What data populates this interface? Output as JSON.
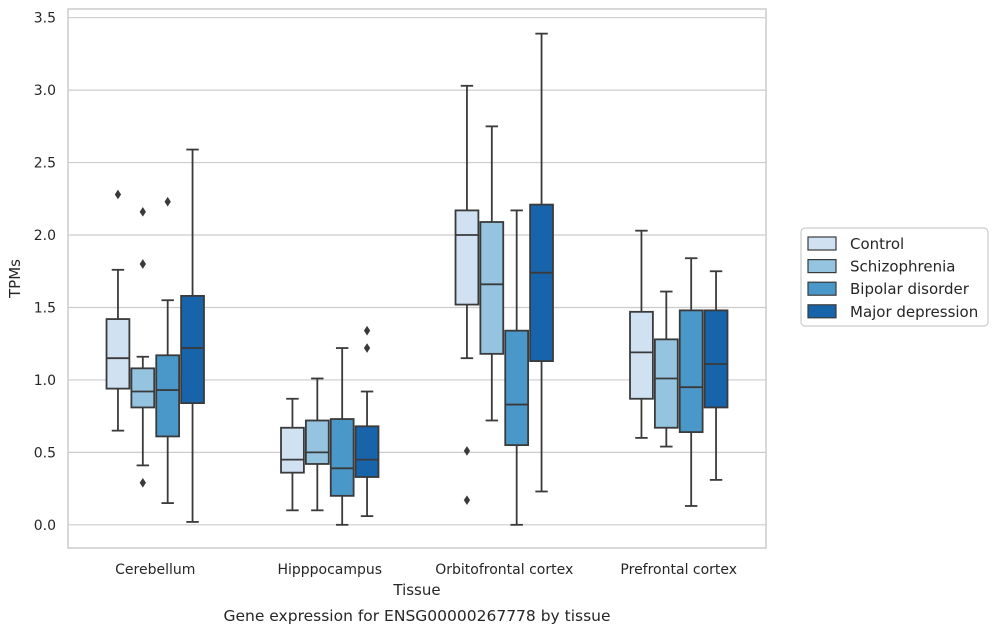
{
  "caption": "Gene expression for ENSG00000267778 by tissue",
  "chart_data": {
    "type": "boxplot",
    "title": "",
    "xlabel": "Tissue",
    "ylabel": "TPMs",
    "ylim": [
      -0.16,
      3.56
    ],
    "yticks": [
      "0.0",
      "0.5",
      "1.0",
      "1.5",
      "2.0",
      "2.5",
      "3.0",
      "3.5"
    ],
    "ytick_values": [
      0,
      0.5,
      1.0,
      1.5,
      2.0,
      2.5,
      3.0,
      3.5
    ],
    "grid": "horizontal",
    "legend_position": "right",
    "categories": [
      "Cerebellum",
      "Hipppocampus",
      "Orbitofrontal cortex",
      "Prefrontal cortex"
    ],
    "series": [
      {
        "name": "Control",
        "color": "#d0e1f2",
        "boxes": [
          {
            "whisker_low": 0.65,
            "q1": 0.94,
            "median": 1.15,
            "q3": 1.42,
            "whisker_high": 1.76,
            "outliers": [
              2.28
            ]
          },
          {
            "whisker_low": 0.1,
            "q1": 0.36,
            "median": 0.45,
            "q3": 0.67,
            "whisker_high": 0.87,
            "outliers": []
          },
          {
            "whisker_low": 1.15,
            "q1": 1.52,
            "median": 2.0,
            "q3": 2.17,
            "whisker_high": 3.03,
            "outliers": [
              0.51,
              0.17
            ]
          },
          {
            "whisker_low": 0.6,
            "q1": 0.87,
            "median": 1.19,
            "q3": 1.47,
            "whisker_high": 2.03,
            "outliers": []
          }
        ]
      },
      {
        "name": "Schizophrenia",
        "color": "#94c4df",
        "boxes": [
          {
            "whisker_low": 0.41,
            "q1": 0.81,
            "median": 0.92,
            "q3": 1.08,
            "whisker_high": 1.16,
            "outliers": [
              2.16,
              1.8,
              0.29
            ]
          },
          {
            "whisker_low": 0.1,
            "q1": 0.42,
            "median": 0.5,
            "q3": 0.72,
            "whisker_high": 1.01,
            "outliers": []
          },
          {
            "whisker_low": 0.72,
            "q1": 1.18,
            "median": 1.66,
            "q3": 2.09,
            "whisker_high": 2.75,
            "outliers": []
          },
          {
            "whisker_low": 0.54,
            "q1": 0.67,
            "median": 1.01,
            "q3": 1.28,
            "whisker_high": 1.61,
            "outliers": []
          }
        ]
      },
      {
        "name": "Bipolar disorder",
        "color": "#4a98c9",
        "boxes": [
          {
            "whisker_low": 0.15,
            "q1": 0.61,
            "median": 0.93,
            "q3": 1.17,
            "whisker_high": 1.55,
            "outliers": [
              2.23
            ]
          },
          {
            "whisker_low": 0.0,
            "q1": 0.2,
            "median": 0.39,
            "q3": 0.73,
            "whisker_high": 1.22,
            "outliers": []
          },
          {
            "whisker_low": 0.0,
            "q1": 0.55,
            "median": 0.83,
            "q3": 1.34,
            "whisker_high": 2.17,
            "outliers": []
          },
          {
            "whisker_low": 0.13,
            "q1": 0.64,
            "median": 0.95,
            "q3": 1.48,
            "whisker_high": 1.84,
            "outliers": []
          }
        ]
      },
      {
        "name": "Major depression",
        "color": "#1764ab",
        "boxes": [
          {
            "whisker_low": 0.02,
            "q1": 0.84,
            "median": 1.22,
            "q3": 1.58,
            "whisker_high": 2.59,
            "outliers": []
          },
          {
            "whisker_low": 0.06,
            "q1": 0.33,
            "median": 0.45,
            "q3": 0.68,
            "whisker_high": 0.92,
            "outliers": [
              1.34,
              1.22
            ]
          },
          {
            "whisker_low": 0.23,
            "q1": 1.13,
            "median": 1.74,
            "q3": 2.21,
            "whisker_high": 3.39,
            "outliers": []
          },
          {
            "whisker_low": 0.31,
            "q1": 0.81,
            "median": 1.11,
            "q3": 1.48,
            "whisker_high": 1.75,
            "outliers": []
          }
        ]
      }
    ]
  }
}
